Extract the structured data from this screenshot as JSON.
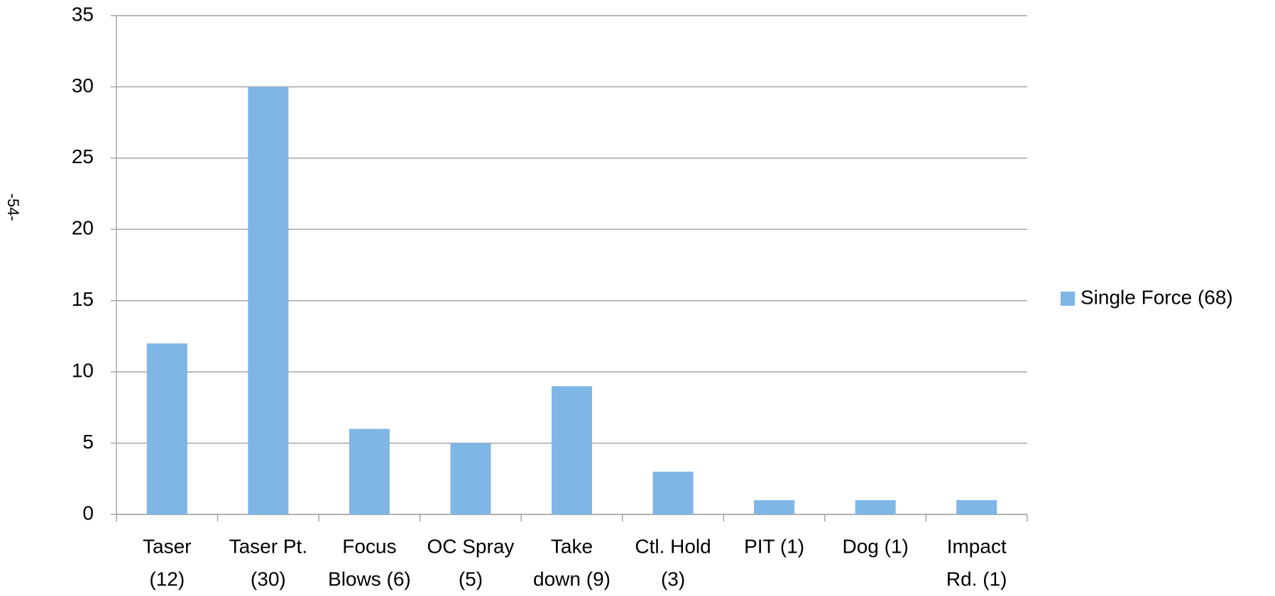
{
  "page_number": "-54-",
  "chart_data": {
    "type": "bar",
    "categories": [
      [
        "Taser",
        "(12)"
      ],
      [
        "Taser Pt.",
        "(30)"
      ],
      [
        "Focus",
        "Blows (6)"
      ],
      [
        "OC Spray",
        "(5)"
      ],
      [
        "Take",
        "down (9)"
      ],
      [
        "Ctl. Hold",
        "(3)"
      ],
      [
        "PIT (1)"
      ],
      [
        "Dog (1)"
      ],
      [
        "Impact",
        "Rd. (1)"
      ]
    ],
    "series": [
      {
        "name": "Single Force (68)",
        "color": "#7eb6e6",
        "values": [
          12,
          30,
          6,
          5,
          9,
          3,
          1,
          1,
          1
        ]
      }
    ],
    "ylim": [
      0,
      35
    ],
    "yticks": [
      0,
      5,
      10,
      15,
      20,
      25,
      30,
      35
    ],
    "grid": true,
    "legend": "right"
  }
}
